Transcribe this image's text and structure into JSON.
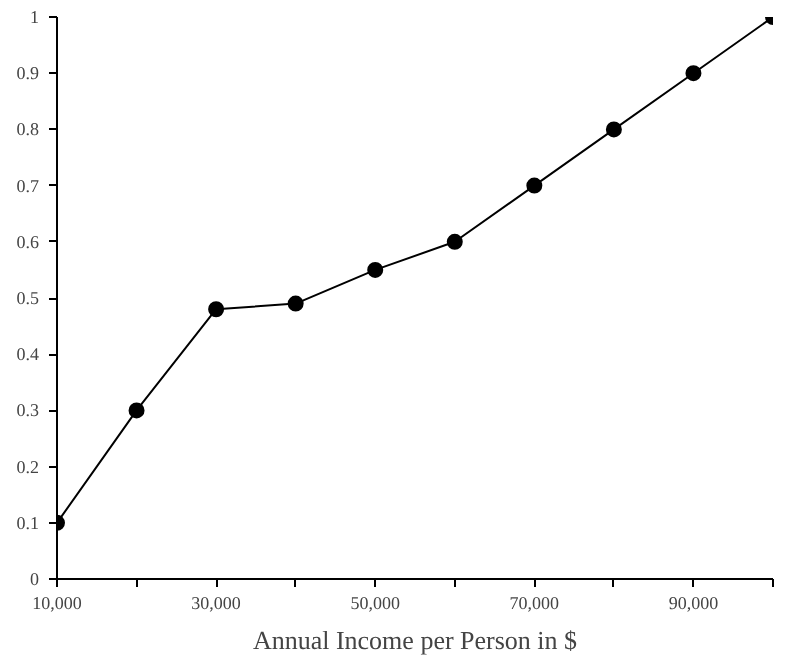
{
  "chart_data": {
    "type": "line",
    "xlabel": "Annual Income per Person in $",
    "x": [
      10000,
      20000,
      30000,
      40000,
      50000,
      60000,
      70000,
      80000,
      90000,
      100000
    ],
    "series": [
      {
        "color": "#000000",
        "values": [
          0.1,
          0.3,
          0.48,
          0.49,
          0.55,
          0.6,
          0.7,
          0.8,
          0.9,
          1.0
        ]
      }
    ],
    "xlim": [
      10000,
      100000
    ],
    "xticks": [
      {
        "value": 10000,
        "label": "10,000"
      },
      {
        "value": 20000,
        "label": null
      },
      {
        "value": 30000,
        "label": "30,000"
      },
      {
        "value": 40000,
        "label": null
      },
      {
        "value": 50000,
        "label": "50,000"
      },
      {
        "value": 60000,
        "label": null
      },
      {
        "value": 70000,
        "label": "70,000"
      },
      {
        "value": 80000,
        "label": null
      },
      {
        "value": 90000,
        "label": "90,000"
      },
      {
        "value": 100000,
        "label": null
      }
    ],
    "ylim": [
      0,
      1
    ],
    "yticks": [
      0,
      0.1,
      0.2,
      0.3,
      0.4,
      0.5,
      0.6,
      0.7,
      0.8,
      0.9,
      1
    ],
    "marker": "circle",
    "line_style": "solid",
    "grid": false
  }
}
